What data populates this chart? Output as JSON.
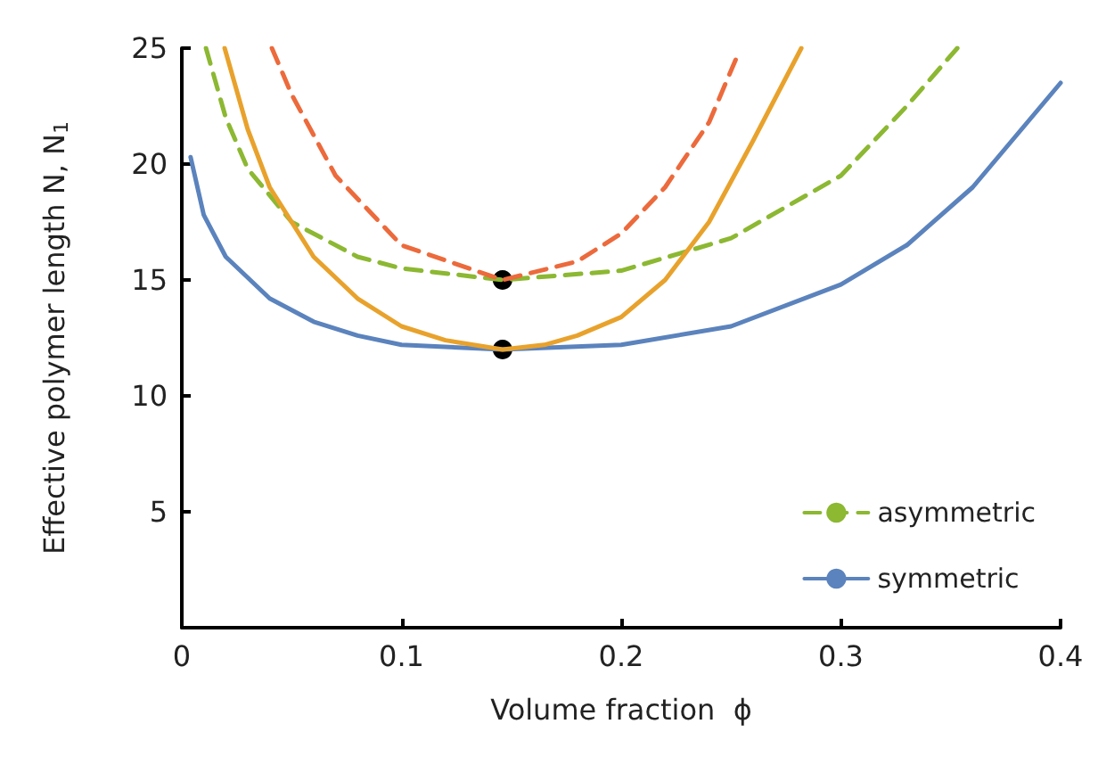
{
  "chart_data": {
    "type": "line",
    "xlabel": "Volume fraction  ϕ",
    "ylabel": "Effective polymer length N, N$_{1}$",
    "xlim": [
      0,
      0.4
    ],
    "xticks": [
      0,
      0.1,
      0.2,
      0.3,
      0.4
    ],
    "ylim": [
      0,
      25
    ],
    "yticks": [
      5,
      10,
      15,
      20,
      25
    ],
    "grid": false,
    "legend": "bottom right",
    "marker": "none",
    "series": [
      {
        "name": "asymmetric",
        "color": "#8cb832",
        "line_style": "dashed",
        "x": [
          0.011,
          0.02,
          0.03,
          0.05,
          0.08,
          0.1,
          0.146,
          0.2,
          0.25,
          0.3,
          0.33,
          0.353
        ],
        "values": [
          25,
          22,
          19.8,
          17.5,
          16,
          15.5,
          15,
          15.4,
          16.8,
          19.5,
          22.5,
          25
        ]
      },
      {
        "name": "symmetric",
        "color": "#5b83bd",
        "line_style": "solid",
        "x": [
          0.004,
          0.01,
          0.02,
          0.04,
          0.06,
          0.08,
          0.1,
          0.146,
          0.2,
          0.25,
          0.3,
          0.33,
          0.36,
          0.4
        ],
        "values": [
          20.3,
          17.8,
          16,
          14.2,
          13.2,
          12.6,
          12.2,
          12,
          12.2,
          13,
          14.8,
          16.5,
          19,
          23.5
        ]
      },
      {
        "color": "#e8a22c",
        "line_style": "solid",
        "x": [
          0.0195,
          0.03,
          0.04,
          0.06,
          0.08,
          0.1,
          0.12,
          0.146,
          0.165,
          0.18,
          0.2,
          0.22,
          0.24,
          0.26,
          0.282
        ],
        "values": [
          25,
          21.5,
          19,
          16,
          14.2,
          13,
          12.4,
          12,
          12.2,
          12.6,
          13.4,
          15,
          17.5,
          21,
          25
        ]
      },
      {
        "color": "#ec6a3c",
        "line_style": "dashed",
        "x": [
          0.041,
          0.05,
          0.07,
          0.1,
          0.146,
          0.18,
          0.2,
          0.22,
          0.24,
          0.253
        ],
        "values": [
          25,
          23,
          19.5,
          16.5,
          15,
          15.8,
          17,
          19,
          21.8,
          24.7
        ]
      },
      {
        "type": "scatter",
        "color": "#000000",
        "marker": "circle",
        "x": [
          0.146,
          0.146
        ],
        "values": [
          15,
          12
        ]
      }
    ]
  }
}
